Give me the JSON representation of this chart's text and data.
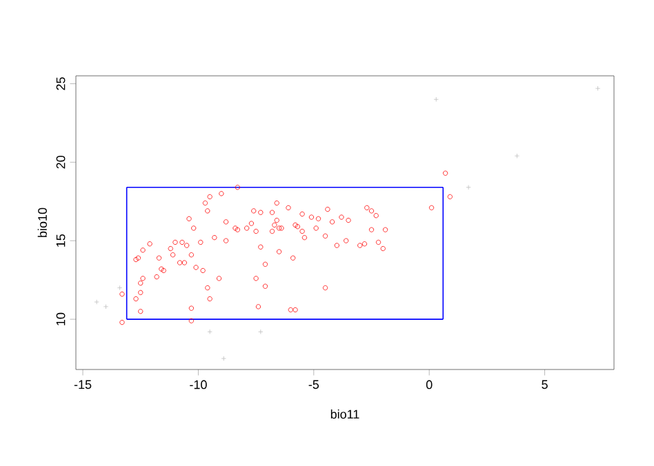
{
  "chart_data": {
    "type": "scatter",
    "xlabel": "bio11",
    "ylabel": "bio10",
    "xlim": [
      -15.3,
      8.0
    ],
    "ylim": [
      6.8,
      25.5
    ],
    "xticks": [
      -15,
      -10,
      -5,
      0,
      5
    ],
    "yticks": [
      10,
      15,
      20,
      25
    ],
    "grid": false,
    "ref_lines": [
      {
        "axis": "x",
        "value": -13.1,
        "color": "#0000ff",
        "line_style": "solid"
      },
      {
        "axis": "x",
        "value": 0.6,
        "color": "#0000ff",
        "line_style": "solid"
      }
    ],
    "series": [
      {
        "color": "#bebebe",
        "marker": "cross",
        "x": [
          -14.4,
          -14.0,
          -13.4,
          -9.5,
          -7.3,
          -8.9,
          0.3,
          1.7,
          3.8,
          7.3
        ],
        "values": [
          11.1,
          10.8,
          12.0,
          9.2,
          9.2,
          7.5,
          24.0,
          18.4,
          20.4,
          24.7
        ]
      },
      {
        "color": "#ff0000",
        "marker": "circle",
        "x": [
          -13.3,
          -13.3,
          -12.7,
          -12.6,
          -12.4,
          -12.5,
          -12.7,
          -12.5,
          -12.5,
          -12.4,
          -12.1,
          -11.7,
          -11.6,
          -11.8,
          -11.5,
          -11.2,
          -11.1,
          -11.0,
          -10.7,
          -10.5,
          -10.8,
          -10.6,
          -10.4,
          -10.2,
          -10.3,
          -10.1,
          -10.3,
          -10.3,
          -9.9,
          -9.8,
          -9.7,
          -9.6,
          -9.5,
          -9.6,
          -9.5,
          -9.3,
          -9.1,
          -9.0,
          -8.8,
          -8.8,
          -8.4,
          -8.3,
          -8.3,
          -7.9,
          -7.7,
          -7.6,
          -7.5,
          -7.3,
          -7.3,
          -7.5,
          -7.4,
          -7.1,
          -7.1,
          -6.8,
          -6.7,
          -6.6,
          -6.8,
          -6.6,
          -6.5,
          -6.5,
          -6.4,
          -6.1,
          -6.0,
          -5.8,
          -5.9,
          -5.8,
          -5.7,
          -5.5,
          -5.5,
          -5.4,
          -5.1,
          -4.9,
          -4.8,
          -4.5,
          -4.5,
          -4.4,
          -4.2,
          -4.0,
          -3.8,
          -3.6,
          -3.5,
          -3.0,
          -2.8,
          -2.7,
          -2.5,
          -2.5,
          -2.3,
          -2.2,
          -2.0,
          -1.9,
          0.1,
          0.7,
          0.9
        ],
        "values": [
          9.8,
          11.6,
          13.8,
          13.9,
          12.6,
          12.3,
          11.3,
          11.7,
          10.5,
          14.4,
          14.8,
          13.9,
          13.2,
          12.7,
          13.1,
          14.5,
          14.1,
          14.9,
          14.9,
          14.7,
          13.6,
          13.6,
          16.4,
          15.8,
          14.1,
          13.3,
          10.7,
          9.9,
          14.9,
          13.1,
          17.4,
          16.9,
          17.8,
          12.0,
          11.3,
          15.2,
          12.6,
          18.0,
          16.2,
          15.0,
          15.8,
          15.7,
          18.4,
          15.8,
          16.1,
          16.9,
          15.6,
          16.8,
          14.6,
          12.6,
          10.8,
          13.5,
          12.1,
          16.8,
          16.0,
          16.3,
          15.6,
          17.4,
          14.3,
          15.8,
          15.8,
          17.1,
          10.6,
          10.6,
          13.9,
          16.0,
          15.9,
          16.7,
          15.6,
          15.2,
          16.5,
          15.8,
          16.4,
          15.3,
          12.0,
          17.0,
          16.2,
          14.7,
          16.5,
          15.0,
          16.3,
          14.7,
          14.8,
          17.1,
          16.9,
          15.7,
          16.6,
          14.9,
          14.5,
          15.7,
          17.1,
          19.3,
          17.8
        ]
      },
      {
        "type": "line",
        "color": "#0000ff",
        "marker": "none",
        "line_style": "solid",
        "x": [
          -13.1,
          0.6
        ],
        "values": [
          10.0,
          10.0
        ]
      },
      {
        "type": "line",
        "color": "#0000ff",
        "marker": "none",
        "line_style": "solid",
        "x": [
          -13.1,
          0.6
        ],
        "values": [
          18.4,
          18.4
        ]
      }
    ]
  }
}
